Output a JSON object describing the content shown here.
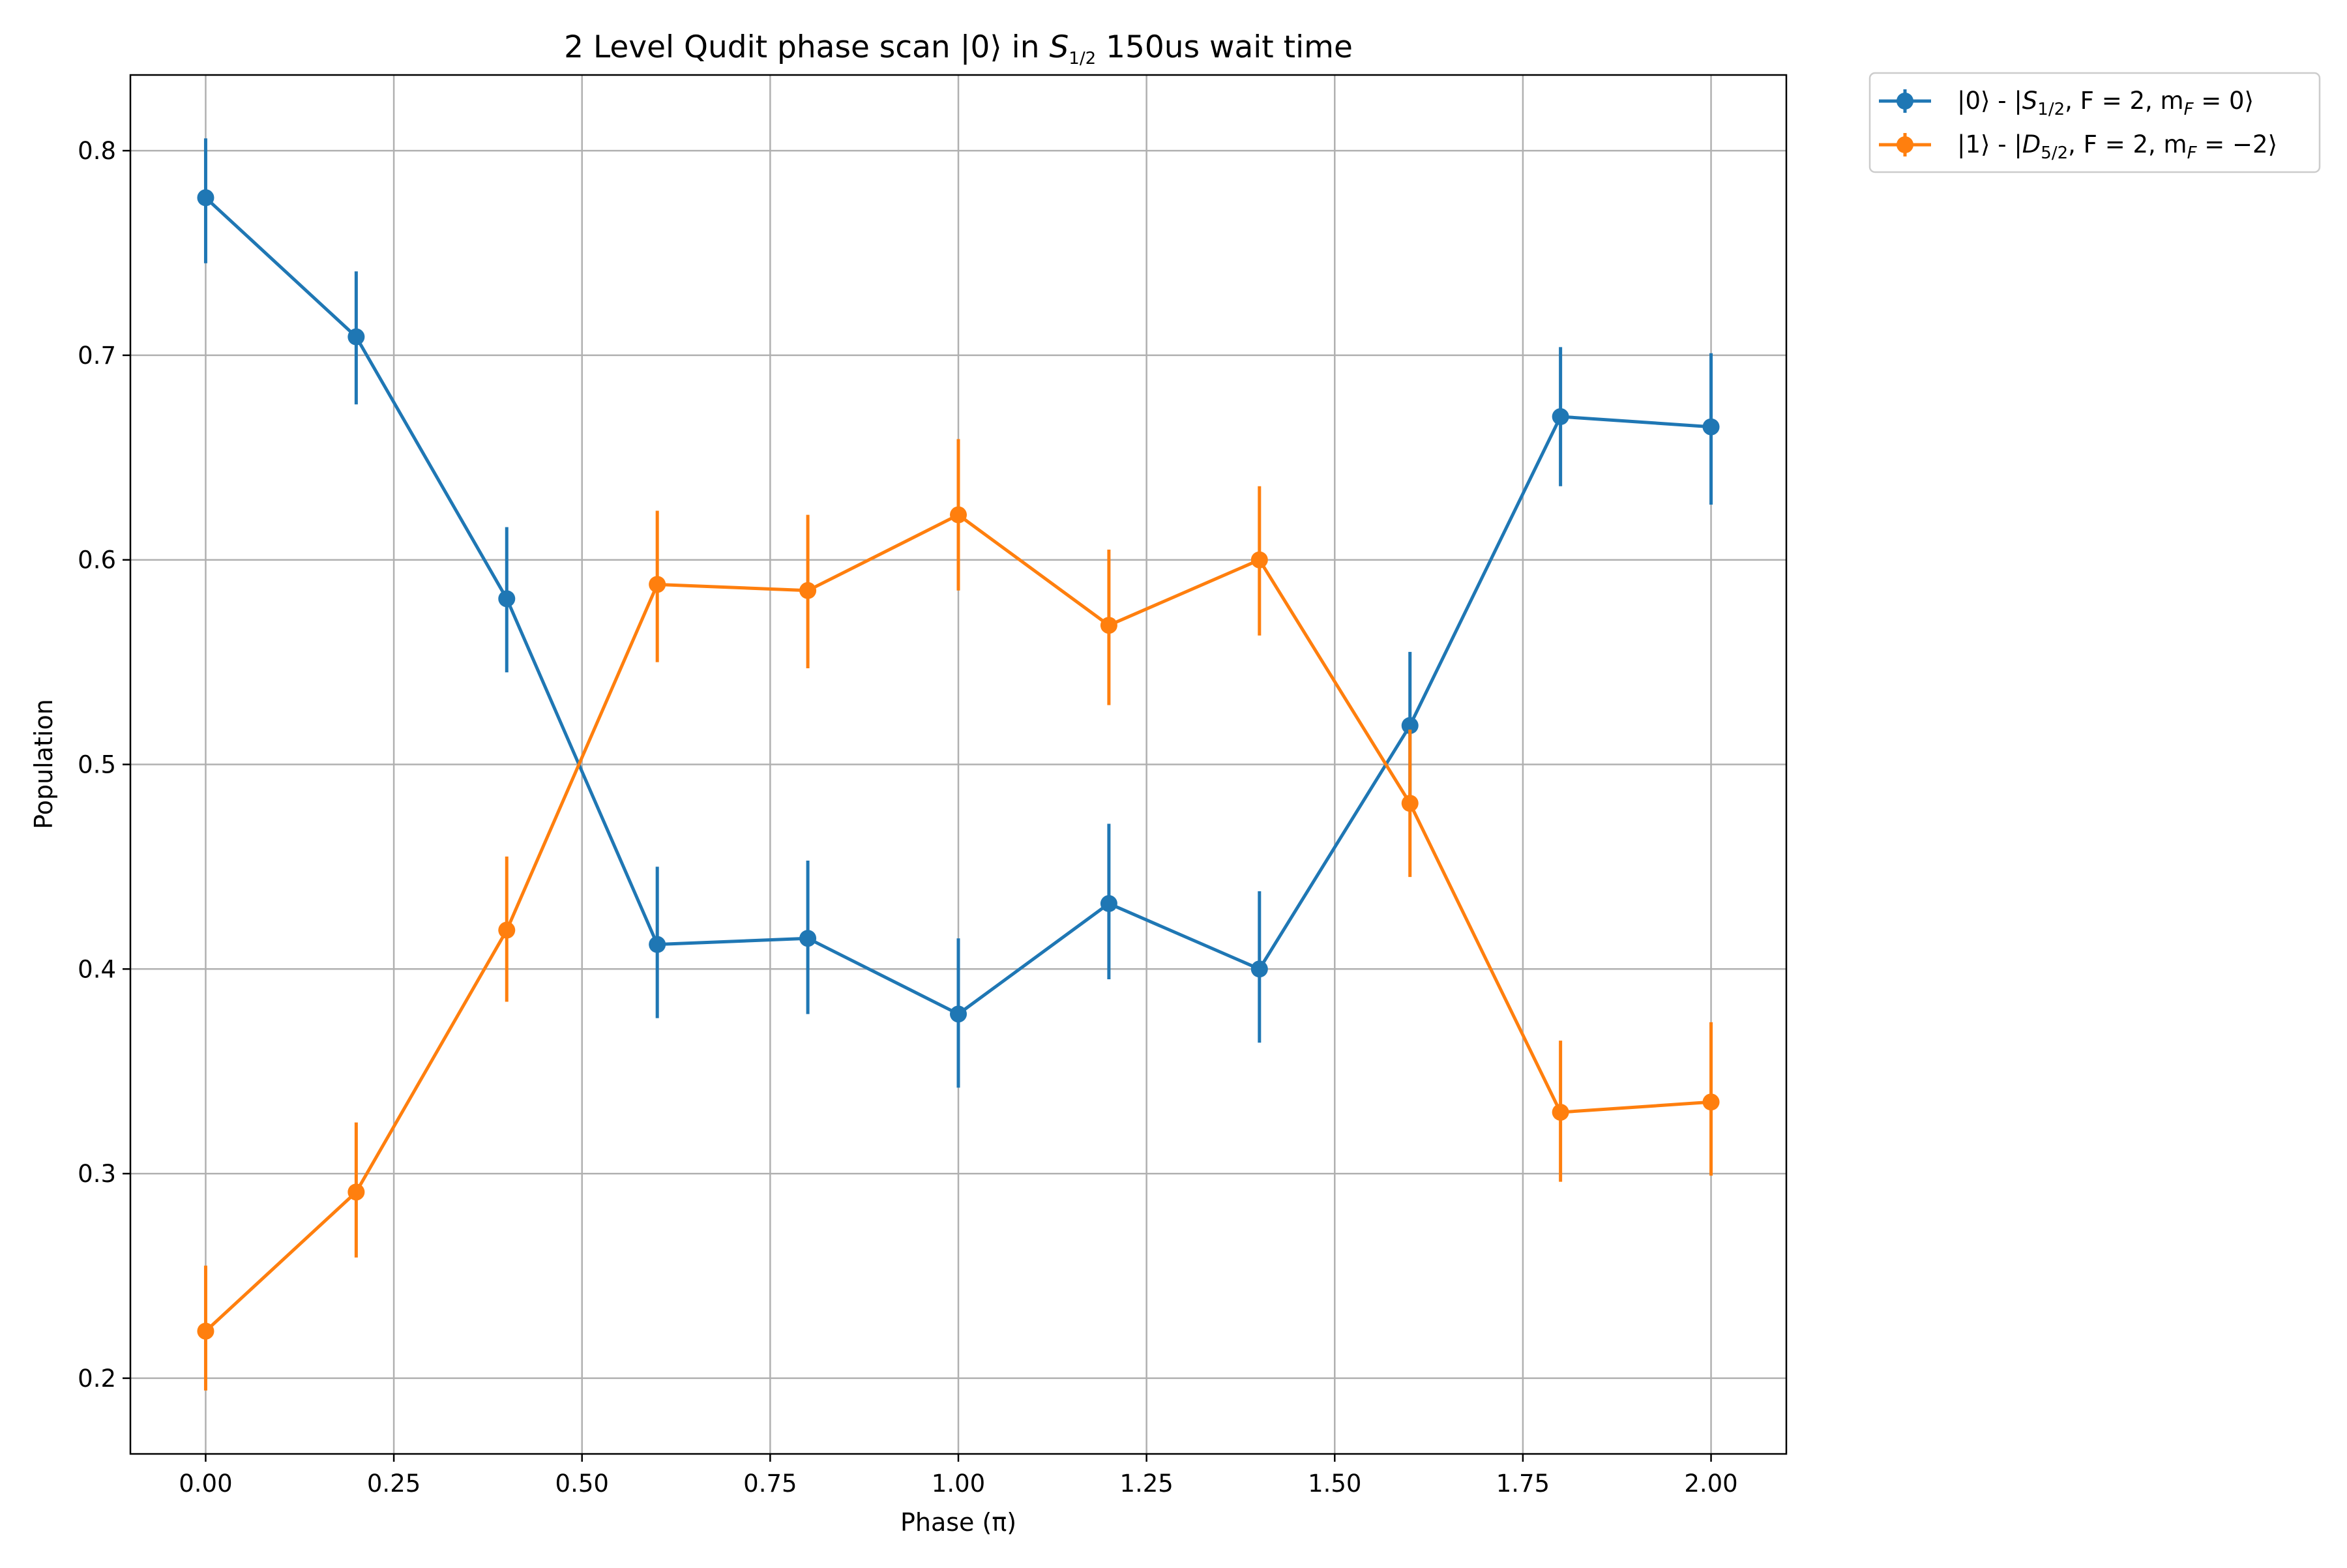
{
  "chart_data": {
    "type": "line",
    "title": {
      "prefix": "2 Level Qudit phase scan |0⟩ in ",
      "sym": "S",
      "sub": "1/2",
      "suffix": " 150us wait time"
    },
    "xlabel": "Phase (π)",
    "ylabel": "Population",
    "xlim": [
      -0.1,
      2.1
    ],
    "ylim": [
      0.163,
      0.837
    ],
    "grid": true,
    "legend_position": "outside-top-right",
    "xticks": [
      0.0,
      0.25,
      0.5,
      0.75,
      1.0,
      1.25,
      1.5,
      1.75,
      2.0
    ],
    "xtick_labels": [
      "0.00",
      "0.25",
      "0.50",
      "0.75",
      "1.00",
      "1.25",
      "1.50",
      "1.75",
      "2.00"
    ],
    "yticks": [
      0.2,
      0.3,
      0.4,
      0.5,
      0.6,
      0.7,
      0.8
    ],
    "ytick_labels": [
      "0.2",
      "0.3",
      "0.4",
      "0.5",
      "0.6",
      "0.7",
      "0.8"
    ],
    "x": [
      0.0,
      0.2,
      0.4,
      0.6,
      0.8,
      1.0,
      1.2,
      1.4,
      1.6,
      1.8,
      2.0
    ],
    "series": [
      {
        "legend": {
          "prefix": "|0⟩ - |",
          "sym": "S",
          "sub": "1/2",
          "suffix": ", F = 2, m",
          "sym2sub": "F",
          "tail": " = 0⟩"
        },
        "color": "#1f77b4",
        "values": [
          0.777,
          0.709,
          0.581,
          0.412,
          0.415,
          0.378,
          0.432,
          0.4,
          0.519,
          0.67,
          0.665
        ],
        "yerr_low": [
          0.745,
          0.676,
          0.545,
          0.376,
          0.378,
          0.342,
          0.395,
          0.364,
          0.483,
          0.636,
          0.627
        ],
        "yerr_high": [
          0.806,
          0.741,
          0.616,
          0.45,
          0.453,
          0.415,
          0.471,
          0.438,
          0.555,
          0.704,
          0.701
        ]
      },
      {
        "legend": {
          "prefix": "|1⟩ - |",
          "sym": "D",
          "sub": "5/2",
          "suffix": ", F = 2, m",
          "sym2sub": "F",
          "tail": " = −2⟩"
        },
        "color": "#ff7f0e",
        "values": [
          0.223,
          0.291,
          0.419,
          0.588,
          0.585,
          0.622,
          0.568,
          0.6,
          0.481,
          0.33,
          0.335
        ],
        "yerr_low": [
          0.194,
          0.259,
          0.384,
          0.55,
          0.547,
          0.585,
          0.529,
          0.563,
          0.445,
          0.296,
          0.299
        ],
        "yerr_high": [
          0.255,
          0.325,
          0.455,
          0.624,
          0.622,
          0.659,
          0.605,
          0.636,
          0.517,
          0.365,
          0.374
        ]
      }
    ]
  }
}
